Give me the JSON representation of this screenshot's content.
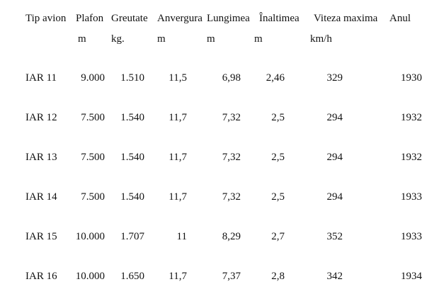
{
  "table": {
    "headers": [
      "Tip avion",
      "Plafon",
      "Greutate",
      "Anvergura",
      "Lungimea",
      "Înaltimea",
      "Viteza maxima",
      "Anul"
    ],
    "units": [
      "",
      "m",
      "kg.",
      "m",
      "m",
      "m",
      "km/h",
      ""
    ],
    "rows": [
      [
        "IAR 11",
        "9.000",
        "1.510",
        "11,5",
        "6,98",
        "2,46",
        "329",
        "1930"
      ],
      [
        "IAR 12",
        "7.500",
        "1.540",
        "11,7",
        "7,32",
        "2,5",
        "294",
        "1932"
      ],
      [
        "IAR 13",
        "7.500",
        "1.540",
        "11,7",
        "7,32",
        "2,5",
        "294",
        "1932"
      ],
      [
        "IAR 14",
        "7.500",
        "1.540",
        "11,7",
        "7,32",
        "2,5",
        "294",
        "1933"
      ],
      [
        "IAR 15",
        "10.000",
        "1.707",
        "11",
        "8,29",
        "2,7",
        "352",
        "1933"
      ],
      [
        "IAR 16",
        "10.000",
        "1.650",
        "11,7",
        "7,37",
        "2,8",
        "342",
        "1934"
      ]
    ]
  }
}
